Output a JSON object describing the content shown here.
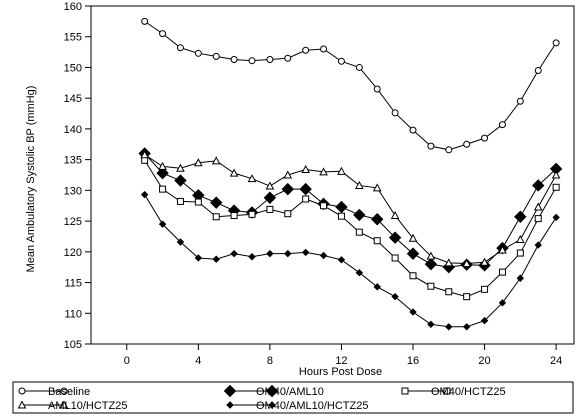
{
  "chart_data": {
    "type": "line",
    "title": "",
    "xlabel": "Hours Post Dose",
    "ylabel": "Mean Ambulatory Systolic BP (mmHg)",
    "xlim": [
      -2,
      25
    ],
    "ylim": [
      105,
      160
    ],
    "xticks": [
      0,
      4,
      8,
      12,
      16,
      20,
      24
    ],
    "yticks": [
      105,
      110,
      115,
      120,
      125,
      130,
      135,
      140,
      145,
      150,
      155,
      160
    ],
    "grid": false,
    "legend_position": "bottom",
    "x": [
      1,
      2,
      3,
      4,
      5,
      6,
      7,
      8,
      9,
      10,
      11,
      12,
      13,
      14,
      15,
      16,
      17,
      18,
      19,
      20,
      21,
      22,
      23,
      24
    ],
    "series": [
      {
        "name": "Baseline",
        "marker": "circle",
        "marker_size": "small",
        "values": [
          157.5,
          155.5,
          153.2,
          152.3,
          151.8,
          151.3,
          151.1,
          151.3,
          151.5,
          152.8,
          153.0,
          151.0,
          150.0,
          146.5,
          142.6,
          139.8,
          137.2,
          136.6,
          137.5,
          138.5,
          140.7,
          144.5,
          149.5,
          154.0
        ]
      },
      {
        "name": "OM40/AML10",
        "marker": "diamond",
        "marker_size": "large",
        "values": [
          136.0,
          132.8,
          131.6,
          129.2,
          128.0,
          126.7,
          126.4,
          128.8,
          130.2,
          130.2,
          127.8,
          127.3,
          126.0,
          125.3,
          122.3,
          119.7,
          118.0,
          117.5,
          117.9,
          117.8,
          120.6,
          125.7,
          130.8,
          133.5
        ]
      },
      {
        "name": "OM40/HCTZ25",
        "marker": "square",
        "marker_size": "small",
        "values": [
          134.9,
          130.2,
          128.2,
          128.1,
          125.7,
          125.9,
          126.1,
          126.9,
          126.2,
          128.6,
          127.5,
          125.8,
          123.2,
          121.8,
          119.0,
          116.1,
          114.4,
          113.5,
          112.7,
          113.9,
          116.7,
          119.8,
          125.4,
          130.5
        ]
      },
      {
        "name": "AML10/HCTZ25",
        "marker": "triangle",
        "marker_size": "small",
        "values": [
          135.8,
          133.9,
          133.6,
          134.5,
          134.8,
          132.8,
          131.9,
          130.7,
          132.5,
          133.4,
          133.0,
          133.1,
          130.8,
          130.4,
          125.9,
          122.2,
          119.3,
          118.2,
          118.1,
          118.3,
          120.3,
          122.0,
          127.3,
          132.5
        ]
      },
      {
        "name": "OM40/AML10/HCTZ25",
        "marker": "diamond",
        "marker_size": "small",
        "values": [
          129.3,
          124.5,
          121.6,
          119.0,
          118.8,
          119.7,
          119.2,
          119.7,
          119.7,
          119.9,
          119.4,
          118.7,
          116.6,
          114.3,
          112.7,
          110.2,
          108.2,
          107.8,
          107.8,
          108.8,
          111.7,
          115.7,
          121.1,
          125.6
        ]
      }
    ]
  }
}
